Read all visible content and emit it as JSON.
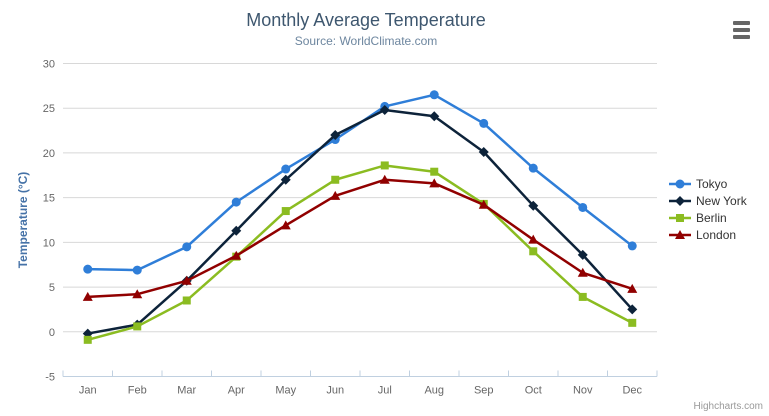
{
  "colors": {
    "title": "#3E576F",
    "subtitle": "#6D869F",
    "axis_label": "#666666",
    "yaxis_title": "#4572A7",
    "grid": "#D8D8D8",
    "axis_line": "#C0D0E0",
    "legend_text": "#333333",
    "credits_text": "#999999",
    "menu_icon": "#666666"
  },
  "credits": {
    "label": "Highcharts.com"
  },
  "chart_data": {
    "type": "line",
    "title": "Monthly Average Temperature",
    "subtitle": "Source: WorldClimate.com",
    "categories": [
      "Jan",
      "Feb",
      "Mar",
      "Apr",
      "May",
      "Jun",
      "Jul",
      "Aug",
      "Sep",
      "Oct",
      "Nov",
      "Dec"
    ],
    "series": [
      {
        "name": "Tokyo",
        "color": "#2f7ed8",
        "marker": "circle",
        "values": [
          7.0,
          6.9,
          9.5,
          14.5,
          18.2,
          21.5,
          25.2,
          26.5,
          23.3,
          18.3,
          13.9,
          9.6
        ]
      },
      {
        "name": "New York",
        "color": "#0d233a",
        "marker": "diamond",
        "values": [
          -0.2,
          0.8,
          5.7,
          11.3,
          17.0,
          22.0,
          24.8,
          24.1,
          20.1,
          14.1,
          8.6,
          2.5
        ]
      },
      {
        "name": "Berlin",
        "color": "#8bbc21",
        "marker": "square",
        "values": [
          -0.9,
          0.6,
          3.5,
          8.4,
          13.5,
          17.0,
          18.6,
          17.9,
          14.3,
          9.0,
          3.9,
          1.0
        ]
      },
      {
        "name": "London",
        "color": "#910000",
        "marker": "triangle",
        "values": [
          3.9,
          4.2,
          5.7,
          8.5,
          11.9,
          15.2,
          17.0,
          16.6,
          14.2,
          10.3,
          6.6,
          4.8
        ]
      }
    ],
    "xlabel": "",
    "ylabel": "Temperature (°C)",
    "ylim": [
      -5,
      30
    ],
    "ytick_step": 5,
    "grid": true,
    "legend_position": "right"
  }
}
